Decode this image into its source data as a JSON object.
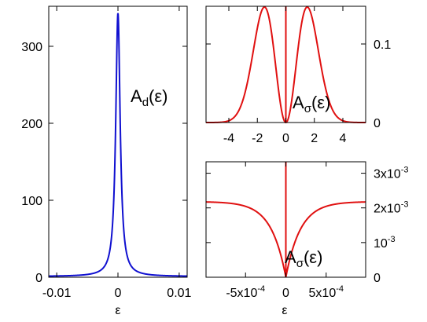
{
  "chart_data": [
    {
      "id": "panel-left",
      "type": "line",
      "annotation": {
        "base": "A",
        "sub": "d",
        "arg": "(ε)"
      },
      "xlabel": "ε",
      "xlim": [
        -0.0113,
        0.0113
      ],
      "ylim": [
        0,
        352
      ],
      "xticks": [
        {
          "value": -0.01,
          "label": "-0.01"
        },
        {
          "value": 0,
          "label": "0"
        },
        {
          "value": 0.01,
          "label": "0.01"
        }
      ],
      "yticks": [
        {
          "value": 0,
          "label": "0"
        },
        {
          "value": 100,
          "label": "100"
        },
        {
          "value": 200,
          "label": "200"
        },
        {
          "value": 300,
          "label": "300"
        }
      ],
      "y_axis_side": "left",
      "series": [
        {
          "color": "#1010d0",
          "model": "lorentzian",
          "peak": 343,
          "halfwidth": 0.00044,
          "background": 1.0
        }
      ],
      "grid": false
    },
    {
      "id": "panel-top-right",
      "type": "line",
      "annotation": {
        "base": "A",
        "sub": "σ",
        "arg": "(ε)"
      },
      "xlim": [
        -5.6,
        5.6
      ],
      "ylim": [
        0,
        0.148
      ],
      "xticks": [
        {
          "value": -4,
          "label": "-4"
        },
        {
          "value": -2,
          "label": "-2"
        },
        {
          "value": 0,
          "label": "0"
        },
        {
          "value": 2,
          "label": "2"
        },
        {
          "value": 4,
          "label": "4"
        }
      ],
      "yticks": [
        {
          "value": 0,
          "label": "0"
        },
        {
          "value": 0.1,
          "label": "0.1"
        }
      ],
      "y_axis_side": "right",
      "series": [
        {
          "color": "#e01010",
          "model": "double-peak",
          "peak_x": 1.5,
          "peak_y": 0.147,
          "center_spike": true
        }
      ],
      "grid": false
    },
    {
      "id": "panel-bottom-right",
      "type": "line",
      "annotation": {
        "base": "A",
        "sub": "σ",
        "arg": "(ε)"
      },
      "xlabel": "ε",
      "xlim": [
        -0.00099,
        0.00099
      ],
      "ylim": [
        0,
        0.00333
      ],
      "xticks": [
        {
          "value": -0.0005,
          "mantissa": "-5x10",
          "exp": "-4"
        },
        {
          "value": 0,
          "mantissa": "0",
          "exp": ""
        },
        {
          "value": 0.0005,
          "mantissa": "5x10",
          "exp": "-4"
        }
      ],
      "yticks": [
        {
          "value": 0,
          "mantissa": "0",
          "exp": ""
        },
        {
          "value": 0.001,
          "mantissa": "10",
          "exp": "-3"
        },
        {
          "value": 0.002,
          "mantissa": "2x10",
          "exp": "-3"
        },
        {
          "value": 0.003,
          "mantissa": "3x10",
          "exp": "-3"
        }
      ],
      "y_axis_side": "right",
      "series": [
        {
          "color": "#e01010",
          "model": "dip",
          "plateau": 0.00218,
          "halfwidth": 0.00018,
          "center_spike": true
        }
      ],
      "grid": false
    }
  ]
}
